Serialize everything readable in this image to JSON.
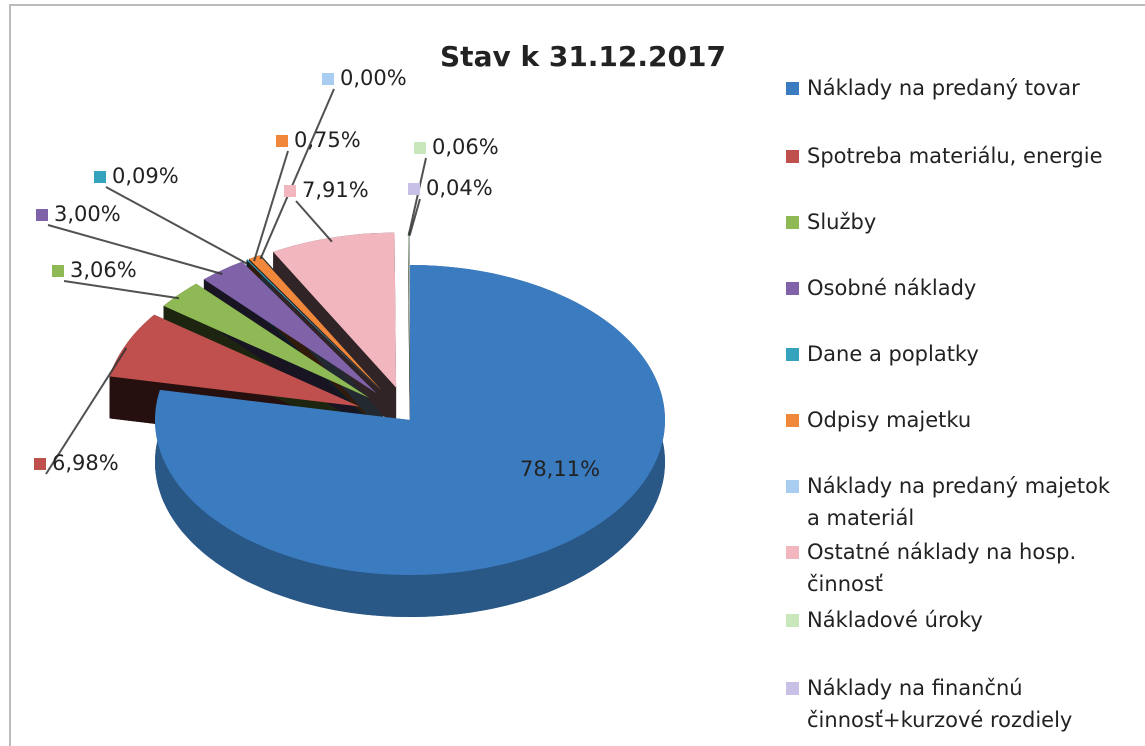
{
  "chart_data": {
    "type": "pie",
    "title": "Stav k 31.12.2017",
    "categories": [
      "Náklady na predaný tovar",
      "Spotreba materiálu, energie",
      "Služby",
      "Osobné náklady",
      "Dane a poplatky",
      "Odpisy majetku",
      "Náklady na predaný majetok a materiál",
      "Ostatné náklady na hosp. činnosť",
      "Nákladové úroky",
      "Náklady na finančnú činnosť+kurzové rozdiely"
    ],
    "values": [
      78.11,
      6.98,
      3.06,
      3.0,
      0.09,
      0.75,
      0.0,
      7.91,
      0.06,
      0.04
    ],
    "value_labels": [
      "78,11%",
      "6,98%",
      "3,06%",
      "3,00%",
      "0,09%",
      "0,75%",
      "0,00%",
      "7,91%",
      "0,06%",
      "0,04%"
    ],
    "colors": [
      "#3b7cc0",
      "#c0504d",
      "#8fb954",
      "#7f62a8",
      "#35a3bd",
      "#f0873a",
      "#a9cdf0",
      "#f2b6bf",
      "#c8e8bc",
      "#c8c0e6"
    ],
    "legend": "right"
  }
}
